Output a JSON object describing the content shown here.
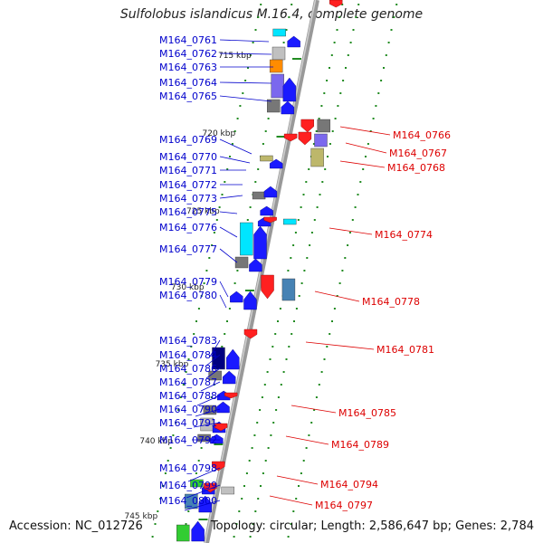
{
  "title": "Sulfolobus islandicus M.16.4, complete genome",
  "footer": {
    "accession": "Accession: NC_012726",
    "summary": "Topology: circular; Length: 2,586,647 bp; Genes: 2,784"
  },
  "colors": {
    "forward_label": "#0000cc",
    "reverse_label": "#dd0000",
    "backbone": "#999999",
    "tick": "#228b22"
  },
  "kbp_marks": [
    "715 kbp",
    "720 kbp",
    "725 kbp",
    "730 kbp",
    "735 kbp",
    "740 kbp",
    "745 kbp"
  ],
  "forward_genes": [
    "M164_0761",
    "M164_0762",
    "M164_0763",
    "M164_0764",
    "M164_0765",
    "M164_0769",
    "M164_0770",
    "M164_0771",
    "M164_0772",
    "M164_0773",
    "M164_0775",
    "M164_0776",
    "M164_0777",
    "M164_0779",
    "M164_0780",
    "M164_0783",
    "M164_0784",
    "M164_0786",
    "M164_0787",
    "M164_0788",
    "M164_0790",
    "M164_0791",
    "M164_0792",
    "M164_0798",
    "M164_0799",
    "M164_0800"
  ],
  "reverse_genes": [
    "M164_0766",
    "M164_0767",
    "M164_0768",
    "M164_0774",
    "M164_0778",
    "M164_0781",
    "M164_0785",
    "M164_0789",
    "M164_0794",
    "M164_0797"
  ]
}
